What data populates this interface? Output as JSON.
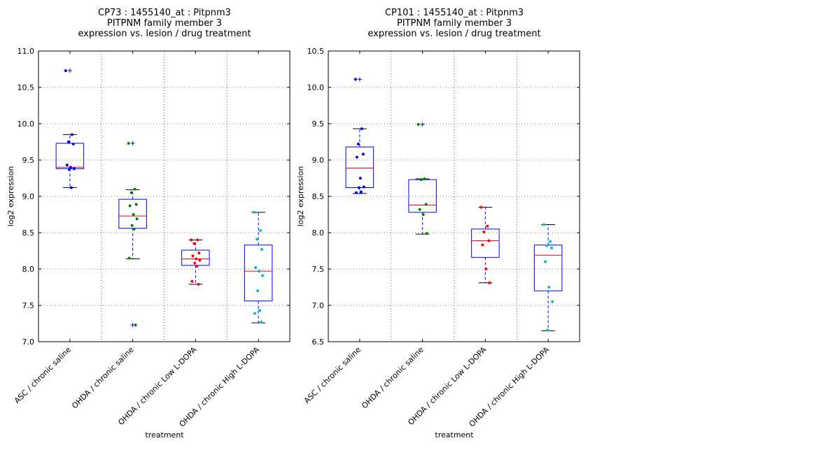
{
  "chart_data": [
    {
      "type": "box",
      "title": [
        "CP73 : 1455140_at : Pitpnm3",
        "PITPNM family member 3",
        "expression vs. lesion / drug treatment"
      ],
      "xlabel": "treatment",
      "ylabel": "log2 expression",
      "ylim": [
        7.0,
        11.0
      ],
      "yticks": [
        "7.0",
        "7.5",
        "8.0",
        "8.5",
        "9.0",
        "9.5",
        "10.0",
        "10.5",
        "11.0"
      ],
      "ytick_values": [
        7.0,
        7.5,
        8.0,
        8.5,
        9.0,
        9.5,
        10.0,
        10.5,
        11.0
      ],
      "grid": true,
      "categories": [
        "ASC / chronic saline",
        "OHDA / chronic saline",
        "OHDA / chronic Low L-DOPA",
        "OHDA / chronic High L-DOPA"
      ],
      "series": [
        {
          "color": "#0000ff",
          "box": {
            "q1": 9.38,
            "median": 9.4,
            "q3": 9.73,
            "whisker_low": 9.12,
            "whisker_high": 9.85
          },
          "outliers": [
            10.73
          ],
          "points": [
            10.73,
            9.85,
            9.75,
            9.72,
            9.43,
            9.4,
            9.38,
            9.37,
            9.12
          ]
        },
        {
          "color": "#008000",
          "box": {
            "q1": 8.56,
            "median": 8.73,
            "q3": 8.96,
            "whisker_low": 8.14,
            "whisker_high": 9.09
          },
          "outliers": [
            9.73,
            7.23
          ],
          "points": [
            9.73,
            9.1,
            9.05,
            8.89,
            8.87,
            8.75,
            8.69,
            8.6,
            8.55,
            8.15,
            7.23
          ]
        },
        {
          "color": "#ff0000",
          "box": {
            "q1": 8.05,
            "median": 8.14,
            "q3": 8.26,
            "whisker_low": 7.79,
            "whisker_high": 8.4
          },
          "points": [
            8.4,
            8.4,
            8.35,
            8.22,
            8.18,
            8.14,
            8.12,
            8.08,
            8.04,
            7.83,
            7.79
          ]
        },
        {
          "color": "#00bfbf",
          "box": {
            "q1": 7.56,
            "median": 7.97,
            "q3": 8.33,
            "whisker_low": 7.26,
            "whisker_high": 8.78
          },
          "points": [
            8.78,
            8.53,
            8.41,
            8.27,
            8.02,
            7.97,
            7.91,
            7.7,
            7.43,
            7.39,
            7.27
          ]
        }
      ]
    },
    {
      "type": "box",
      "title": [
        "CP101 : 1455140_at : Pitpnm3",
        "PITPNM family member 3",
        "expression vs. lesion / drug treatment"
      ],
      "xlabel": "treatment",
      "ylabel": "log2 expression",
      "ylim": [
        6.5,
        10.5
      ],
      "yticks": [
        "6.5",
        "7.0",
        "7.5",
        "8.0",
        "8.5",
        "9.0",
        "9.5",
        "10.0",
        "10.5"
      ],
      "ytick_values": [
        6.5,
        7.0,
        7.5,
        8.0,
        8.5,
        9.0,
        9.5,
        10.0,
        10.5
      ],
      "grid": true,
      "categories": [
        "ASC / chronic saline",
        "OHDA / chronic saline",
        "OHDA / chronic Low L-DOPA",
        "OHDA / chronic High L-DOPA"
      ],
      "series": [
        {
          "color": "#0000ff",
          "box": {
            "q1": 8.62,
            "median": 8.89,
            "q3": 9.18,
            "whisker_low": 8.54,
            "whisker_high": 9.43
          },
          "outliers": [
            10.11
          ],
          "points": [
            10.11,
            9.43,
            9.22,
            9.08,
            9.04,
            8.75,
            8.63,
            8.62,
            8.56,
            8.55
          ]
        },
        {
          "color": "#008000",
          "box": {
            "q1": 8.28,
            "median": 8.38,
            "q3": 8.73,
            "whisker_low": 7.98,
            "whisker_high": 8.74
          },
          "outliers": [
            9.49
          ],
          "points": [
            9.49,
            8.74,
            8.73,
            8.39,
            8.32,
            8.25,
            7.99
          ]
        },
        {
          "color": "#ff0000",
          "box": {
            "q1": 7.66,
            "median": 7.89,
            "q3": 8.05,
            "whisker_low": 7.31,
            "whisker_high": 8.35
          },
          "points": [
            8.35,
            8.09,
            8.01,
            7.89,
            7.83,
            7.5,
            7.31
          ]
        },
        {
          "color": "#00bfbf",
          "box": {
            "q1": 7.2,
            "median": 7.69,
            "q3": 7.83,
            "whisker_low": 6.65,
            "whisker_high": 8.11
          },
          "points": [
            8.11,
            7.88,
            7.82,
            7.79,
            7.6,
            7.25,
            7.05,
            6.66
          ]
        }
      ]
    }
  ]
}
